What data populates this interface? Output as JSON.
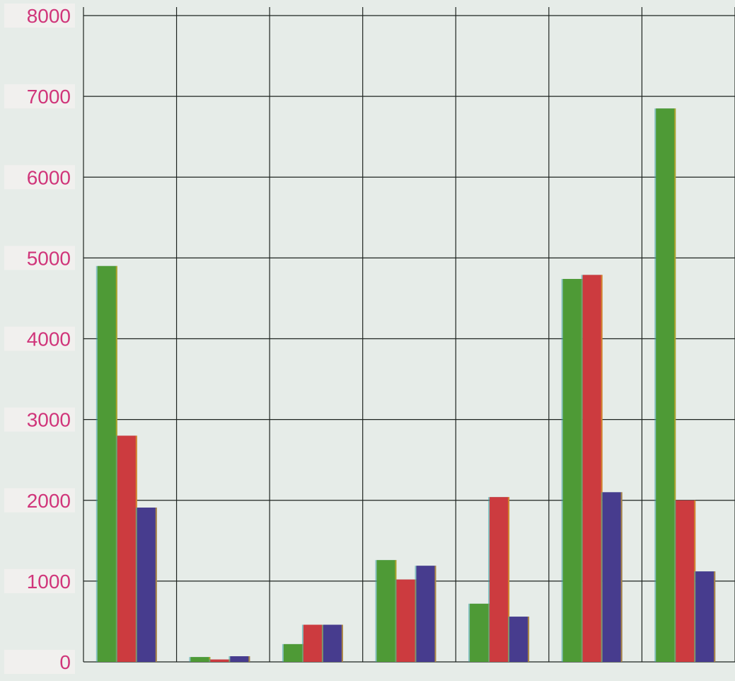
{
  "chart_data": {
    "type": "bar",
    "categories": [
      "",
      "",
      "",
      "",
      "",
      "",
      ""
    ],
    "series": [
      {
        "color": "#4e9a36",
        "values": [
          4900,
          60,
          220,
          1260,
          720,
          4740,
          6850
        ]
      },
      {
        "color": "#cc3b3f",
        "values": [
          2800,
          30,
          460,
          1020,
          2040,
          4790,
          2000
        ]
      },
      {
        "color": "#473c8e",
        "values": [
          1910,
          70,
          460,
          1190,
          560,
          2100,
          1120
        ]
      }
    ],
    "y_ticks": [
      "0",
      "1000",
      "2000",
      "3000",
      "4000",
      "5000",
      "6000",
      "7000",
      "8000"
    ],
    "ylim": [
      0,
      8000
    ],
    "grid": true,
    "title": "",
    "xlabel": "",
    "ylabel": "",
    "tick_label_color": "#d0357a",
    "grid_color": "#1e2420",
    "background_color": "#e6ece8"
  }
}
